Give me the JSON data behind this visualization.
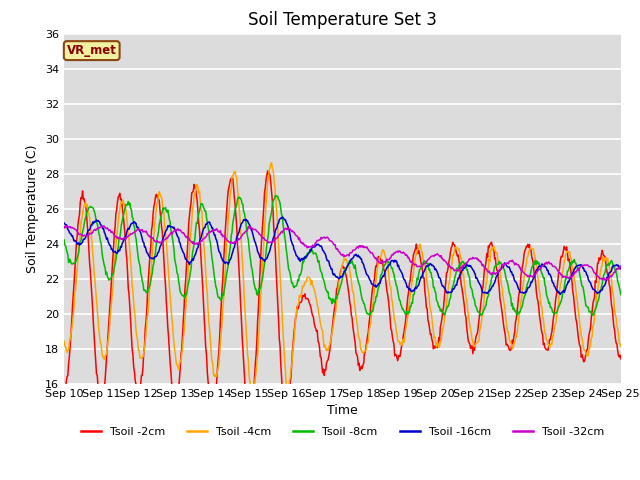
{
  "title": "Soil Temperature Set 3",
  "xlabel": "Time",
  "ylabel": "Soil Temperature (C)",
  "ylim": [
    16,
    36
  ],
  "yticks": [
    16,
    18,
    20,
    22,
    24,
    26,
    28,
    30,
    32,
    34,
    36
  ],
  "background_color": "#dcdcdc",
  "annotation_text": "VR_met",
  "annotation_color": "#8B0000",
  "annotation_bg": "#f0f0a0",
  "annotation_border": "#8B4513",
  "series_colors": {
    "Tsoil -2cm": "#ff0000",
    "Tsoil -4cm": "#ffa500",
    "Tsoil -8cm": "#00bb00",
    "Tsoil -16cm": "#0000cc",
    "Tsoil -32cm": "#cc00cc"
  },
  "xtick_labels": [
    "Sep 10",
    "Sep 11",
    "Sep 12",
    "Sep 13",
    "Sep 14",
    "Sep 15",
    "Sep 16",
    "Sep 17",
    "Sep 18",
    "Sep 19",
    "Sep 20",
    "Sep 21",
    "Sep 22",
    "Sep 23",
    "Sep 24",
    "Sep 25"
  ],
  "n_days": 15,
  "points_per_day": 48
}
